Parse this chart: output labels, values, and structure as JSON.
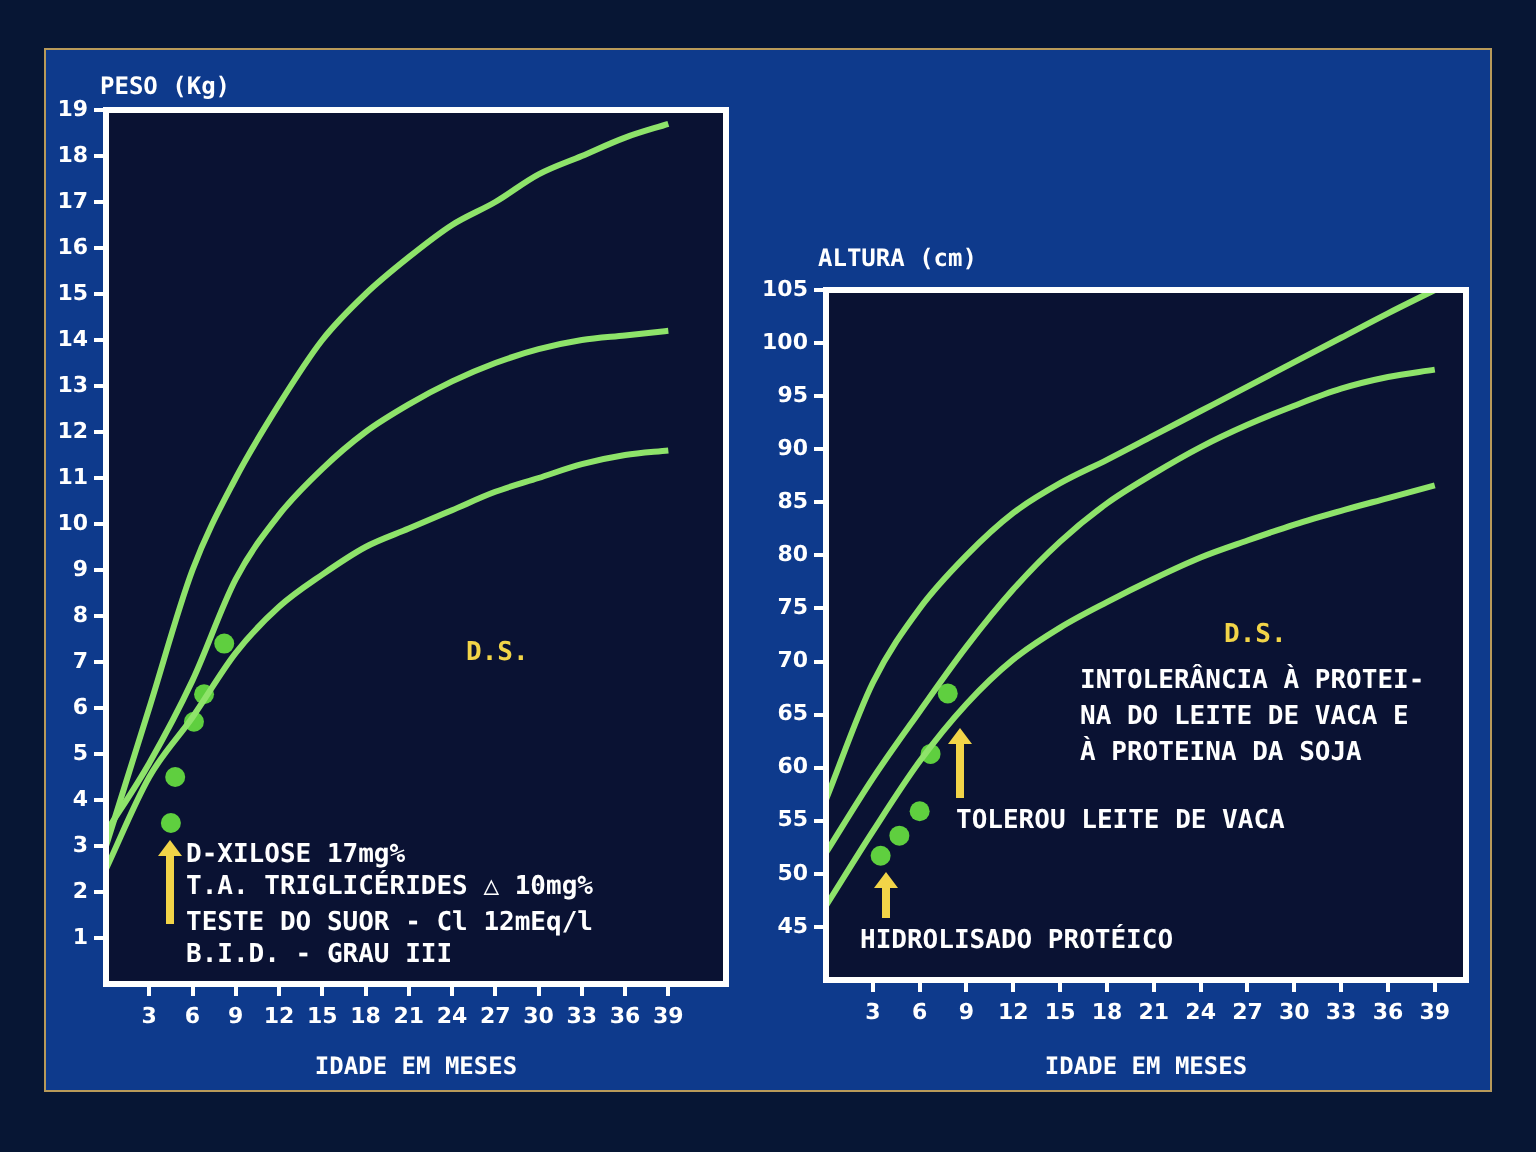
{
  "chart_data": [
    {
      "type": "line",
      "ylabel": "PESO (Kg)",
      "xlabel": "IDADE EM MESES",
      "xlim": [
        0,
        43
      ],
      "ylim": [
        0,
        19
      ],
      "xticks": [
        3,
        6,
        9,
        12,
        15,
        18,
        21,
        24,
        27,
        30,
        33,
        36,
        39
      ],
      "yticks": [
        1,
        2,
        3,
        4,
        5,
        6,
        7,
        8,
        9,
        10,
        11,
        12,
        13,
        14,
        15,
        16,
        17,
        18,
        19
      ],
      "grid": false,
      "legend": false,
      "series": [
        {
          "color": "#8ee36a",
          "marker": "none",
          "x": [
            0,
            3,
            6,
            9,
            12,
            15,
            18,
            21,
            24,
            27,
            30,
            33,
            36,
            39
          ],
          "values": [
            3.0,
            6.0,
            9.0,
            11.0,
            12.6,
            14.0,
            15.0,
            15.8,
            16.5,
            17.0,
            17.6,
            18.0,
            18.4,
            18.7
          ]
        },
        {
          "color": "#8ee36a",
          "marker": "none",
          "x": [
            0,
            3,
            6,
            9,
            12,
            15,
            18,
            21,
            24,
            27,
            30,
            33,
            36,
            39
          ],
          "values": [
            3.3,
            4.8,
            6.6,
            8.8,
            10.2,
            11.2,
            12.0,
            12.6,
            13.1,
            13.5,
            13.8,
            14.0,
            14.1,
            14.2
          ]
        },
        {
          "color": "#8ee36a",
          "marker": "none",
          "x": [
            0,
            3,
            6,
            9,
            12,
            15,
            18,
            21,
            24,
            27,
            30,
            33,
            36,
            39
          ],
          "values": [
            2.5,
            4.5,
            5.8,
            7.2,
            8.2,
            8.9,
            9.5,
            9.9,
            10.3,
            10.7,
            11.0,
            11.3,
            11.5,
            11.6
          ]
        },
        {
          "type": "scatter",
          "color": "#5fcf3f",
          "marker": "circle",
          "x": [
            4.5,
            4.8,
            6.1,
            6.8,
            8.2
          ],
          "values": [
            3.5,
            4.5,
            5.7,
            6.3,
            7.4
          ]
        }
      ],
      "annotations": [
        "D.S.",
        "D-XILOSE 17mg%",
        "T.A. TRIGLICÉRIDES △ 10mg%",
        "TESTE DO SUOR - Cl 12mEq/l",
        "B.I.D. - GRAU III"
      ]
    },
    {
      "type": "line",
      "ylabel": "ALTURA (cm)",
      "xlabel": "IDADE EM MESES",
      "xlim": [
        0,
        41
      ],
      "ylim": [
        40,
        105
      ],
      "xticks": [
        3,
        6,
        9,
        12,
        15,
        18,
        21,
        24,
        27,
        30,
        33,
        36,
        39
      ],
      "yticks": [
        45,
        50,
        55,
        60,
        65,
        70,
        75,
        80,
        85,
        90,
        95,
        100,
        105
      ],
      "grid": false,
      "legend": false,
      "series": [
        {
          "color": "#8ee36a",
          "marker": "none",
          "x": [
            0,
            3,
            6,
            9,
            12,
            15,
            18,
            21,
            24,
            27,
            30,
            33,
            36,
            39
          ],
          "values": [
            57,
            68,
            75,
            80,
            84,
            86.8,
            89,
            91.3,
            93.6,
            95.9,
            98.2,
            100.5,
            102.8,
            105
          ]
        },
        {
          "color": "#8ee36a",
          "marker": "none",
          "x": [
            0,
            3,
            6,
            9,
            12,
            15,
            18,
            21,
            24,
            27,
            30,
            33,
            36,
            39
          ],
          "values": [
            52,
            59,
            65.3,
            71.4,
            76.8,
            81.3,
            84.9,
            87.7,
            90.2,
            92.3,
            94.1,
            95.7,
            96.8,
            97.5
          ]
        },
        {
          "color": "#8ee36a",
          "marker": "none",
          "x": [
            0,
            3,
            6,
            9,
            12,
            15,
            18,
            21,
            24,
            27,
            30,
            33,
            36,
            39
          ],
          "values": [
            47,
            54,
            60.6,
            66,
            70.2,
            73.2,
            75.6,
            77.8,
            79.8,
            81.4,
            82.9,
            84.2,
            85.4,
            86.6
          ]
        },
        {
          "type": "scatter",
          "color": "#5fcf3f",
          "marker": "circle",
          "x": [
            3.5,
            4.7,
            6.0,
            6.7,
            7.8
          ],
          "values": [
            51.7,
            53.6,
            55.9,
            61.3,
            67.0
          ]
        }
      ],
      "annotations": [
        "D.S.",
        "INTOLERÂNCIA À PROTEI-",
        "NA DO LEITE DE VACA E",
        "À PROTEINA DA SOJA",
        "TOLEROU LEITE DE VACA",
        "HIDROLISADO PROTÉICO"
      ]
    }
  ]
}
